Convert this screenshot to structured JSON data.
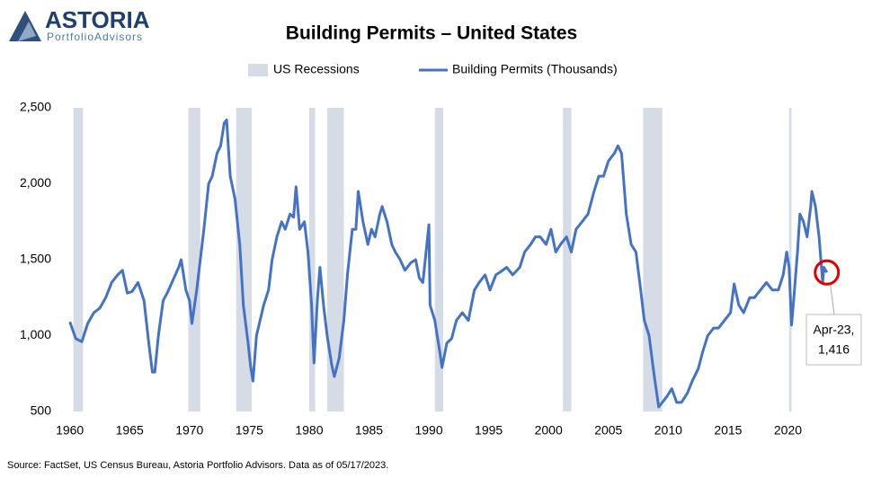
{
  "logo": {
    "name": "ASTORIA",
    "tagline": "PortfolioAdvisors"
  },
  "chart_data": {
    "type": "line",
    "title": "Building Permits – United States",
    "source": "Source: FactSet, US Census Bureau, Astoria Portfolio Advisors. Data as of 05/17/2023.",
    "recessions": {
      "name": "US Recessions",
      "color": "#d6dce5",
      "periods": [
        [
          1960.3,
          1961.1
        ],
        [
          1969.9,
          1970.9
        ],
        [
          1973.9,
          1975.2
        ],
        [
          1980.0,
          1980.5
        ],
        [
          1981.5,
          1982.9
        ],
        [
          1990.5,
          1991.2
        ],
        [
          2001.2,
          2001.9
        ],
        [
          2007.9,
          2009.5
        ],
        [
          2020.1,
          2020.3
        ]
      ]
    },
    "series": [
      {
        "name": "Building Permits (Thousands)",
        "color": "#4472c4",
        "x": [
          1960.0,
          1960.5,
          1961.0,
          1961.5,
          1962.0,
          1962.5,
          1963.0,
          1963.5,
          1964.0,
          1964.4,
          1964.8,
          1965.2,
          1965.7,
          1966.2,
          1966.6,
          1966.9,
          1967.1,
          1967.4,
          1967.8,
          1968.2,
          1968.7,
          1969.1,
          1969.3,
          1969.7,
          1970.0,
          1970.2,
          1970.6,
          1970.9,
          1971.2,
          1971.6,
          1971.9,
          1972.3,
          1972.6,
          1972.9,
          1973.1,
          1973.4,
          1973.8,
          1974.2,
          1974.5,
          1974.9,
          1975.1,
          1975.3,
          1975.6,
          1975.9,
          1976.2,
          1976.6,
          1976.9,
          1977.3,
          1977.7,
          1978.0,
          1978.4,
          1978.7,
          1978.9,
          1979.2,
          1979.6,
          1979.9,
          1980.2,
          1980.4,
          1980.7,
          1980.9,
          1981.2,
          1981.5,
          1981.9,
          1982.1,
          1982.5,
          1982.9,
          1983.2,
          1983.6,
          1983.9,
          1984.1,
          1984.5,
          1984.9,
          1985.2,
          1985.5,
          1985.9,
          1986.1,
          1986.5,
          1986.9,
          1987.2,
          1987.6,
          1988.0,
          1988.5,
          1988.9,
          1989.2,
          1989.5,
          1990.0,
          1990.1,
          1990.5,
          1990.9,
          1991.1,
          1991.5,
          1991.9,
          1992.3,
          1992.8,
          1993.3,
          1993.8,
          1994.2,
          1994.7,
          1995.1,
          1995.6,
          1996.0,
          1996.5,
          1997.0,
          1997.6,
          1998.0,
          1998.5,
          1998.9,
          1999.3,
          1999.8,
          2000.2,
          2000.6,
          2001.0,
          2001.5,
          2001.9,
          2002.3,
          2002.8,
          2003.3,
          2003.8,
          2004.2,
          2004.6,
          2005.0,
          2005.5,
          2005.8,
          2006.1,
          2006.5,
          2006.9,
          2007.3,
          2007.7,
          2008.0,
          2008.4,
          2008.8,
          2009.2,
          2009.5,
          2009.9,
          2010.3,
          2010.7,
          2011.1,
          2011.6,
          2012.0,
          2012.5,
          2012.9,
          2013.3,
          2013.8,
          2014.2,
          2014.7,
          2015.2,
          2015.5,
          2015.9,
          2016.3,
          2016.8,
          2017.2,
          2017.7,
          2018.2,
          2018.7,
          2019.2,
          2019.6,
          2019.9,
          2020.1,
          2020.3,
          2020.5,
          2020.8,
          2021.0,
          2021.3,
          2021.6,
          2021.9,
          2022.0,
          2022.3,
          2022.6,
          2022.9,
          2023.0,
          2023.25
        ],
        "values": [
          1090,
          980,
          960,
          1080,
          1150,
          1180,
          1250,
          1350,
          1400,
          1430,
          1280,
          1290,
          1350,
          1230,
          950,
          760,
          760,
          1000,
          1230,
          1290,
          1380,
          1450,
          1500,
          1300,
          1230,
          1080,
          1300,
          1500,
          1700,
          2000,
          2050,
          2200,
          2250,
          2400,
          2420,
          2050,
          1900,
          1600,
          1200,
          950,
          800,
          700,
          1000,
          1100,
          1200,
          1300,
          1500,
          1650,
          1750,
          1700,
          1800,
          1780,
          1980,
          1700,
          1750,
          1550,
          1200,
          820,
          1250,
          1450,
          1200,
          1000,
          800,
          730,
          850,
          1100,
          1400,
          1700,
          1700,
          1950,
          1750,
          1600,
          1700,
          1650,
          1800,
          1850,
          1750,
          1600,
          1550,
          1500,
          1430,
          1480,
          1500,
          1380,
          1350,
          1730,
          1200,
          1100,
          900,
          790,
          950,
          980,
          1100,
          1150,
          1100,
          1300,
          1350,
          1400,
          1300,
          1400,
          1420,
          1450,
          1400,
          1450,
          1550,
          1600,
          1650,
          1650,
          1600,
          1700,
          1550,
          1600,
          1650,
          1550,
          1700,
          1750,
          1800,
          1950,
          2050,
          2050,
          2150,
          2200,
          2250,
          2200,
          1800,
          1600,
          1550,
          1300,
          1100,
          1000,
          750,
          530,
          560,
          600,
          650,
          560,
          560,
          620,
          700,
          780,
          900,
          1000,
          1050,
          1050,
          1100,
          1150,
          1340,
          1200,
          1150,
          1250,
          1250,
          1300,
          1350,
          1300,
          1300,
          1400,
          1550,
          1450,
          1070,
          1250,
          1550,
          1800,
          1750,
          1650,
          1850,
          1950,
          1850,
          1650,
          1350,
          1450,
          1416
        ]
      }
    ],
    "annotation": {
      "x": 2023.25,
      "y": 1416,
      "lines": [
        "Apr-23,",
        "1,416"
      ],
      "color": "#e00000"
    },
    "xlim": [
      1959.2,
      2027.4
    ],
    "xticks": [
      1960,
      1965,
      1970,
      1975,
      1980,
      1985,
      1990,
      1995,
      2000,
      2005,
      2010,
      2015,
      2020
    ],
    "ylim": [
      500,
      2500
    ],
    "yticks": [
      500,
      {
        "value": 1000,
        "label": "1,000"
      },
      {
        "value": 1500,
        "label": "1,500"
      },
      {
        "value": 2000,
        "label": "2,000"
      },
      {
        "value": 2500,
        "label": "2,500"
      }
    ],
    "grid": false
  }
}
